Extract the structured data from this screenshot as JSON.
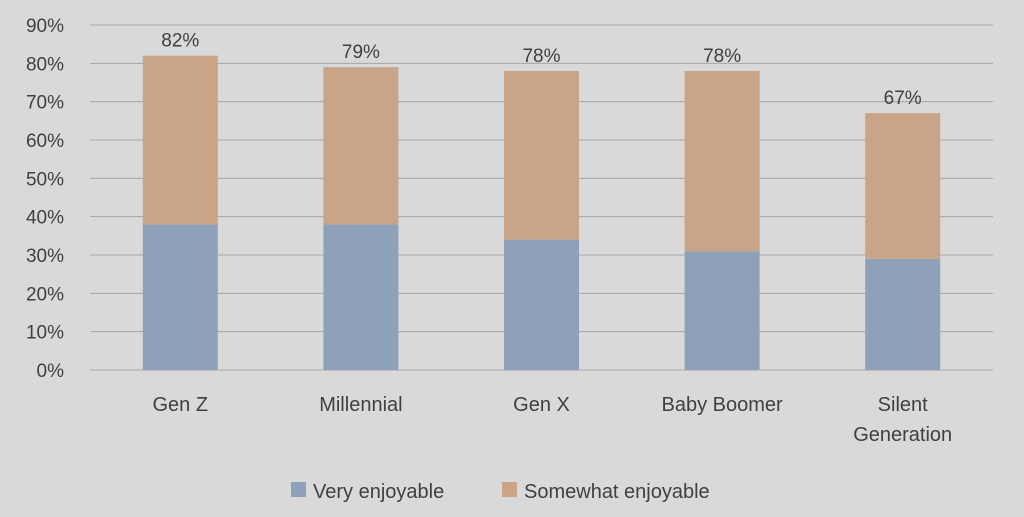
{
  "chart_data": {
    "type": "bar",
    "stacked": true,
    "categories": [
      [
        "Gen Z"
      ],
      [
        "Millennial"
      ],
      [
        "Gen X"
      ],
      [
        "Baby Boomer"
      ],
      [
        "Silent",
        "Generation"
      ]
    ],
    "series": [
      {
        "name": "Very enjoyable",
        "values": [
          38,
          38,
          34,
          31,
          29
        ],
        "color": "#8fa0b9"
      },
      {
        "name": "Somewhat enjoyable",
        "values": [
          44,
          41,
          44,
          47,
          38
        ],
        "color": "#c8a489"
      }
    ],
    "totals": [
      "82%",
      "79%",
      "78%",
      "78%",
      "67%"
    ],
    "ylim": [
      0,
      90
    ],
    "yticks": [
      "0%",
      "10%",
      "20%",
      "30%",
      "40%",
      "50%",
      "60%",
      "70%",
      "80%",
      "90%"
    ],
    "grid": true,
    "legend_position": "bottom",
    "title": "",
    "xlabel": "",
    "ylabel": ""
  }
}
